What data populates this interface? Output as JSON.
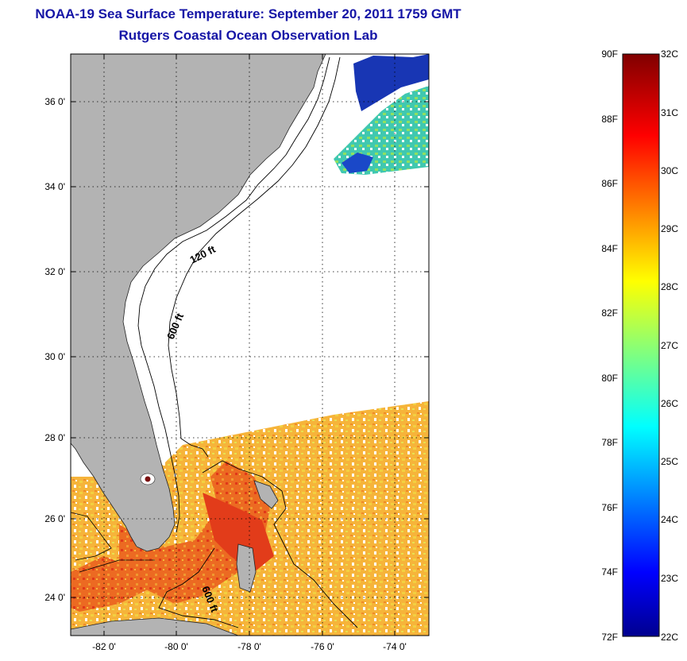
{
  "title": {
    "line1": "NOAA-19 Sea Surface Temperature:  September 20, 2011 1759 GMT",
    "line2": "Rutgers Coastal Ocean Observation Lab"
  },
  "map": {
    "lat_labels": [
      "36 0'",
      "34 0'",
      "32 0'",
      "30 0'",
      "28 0'",
      "26 0'",
      "24 0'"
    ],
    "lon_labels": [
      "-82 0'",
      "-80 0'",
      "-78 0'",
      "-76 0'",
      "-74 0'"
    ],
    "contour_labels": [
      "120 ft",
      "600 ft",
      "600 ft"
    ],
    "colors": {
      "land": "#b3b3b3",
      "grid": "#000000",
      "warm_water": "#f0a030",
      "hot_water": "#e8501a",
      "cold_water": "#1a3ab0"
    }
  },
  "colorbar": {
    "fahrenheit_labels": [
      "90F",
      "88F",
      "86F",
      "84F",
      "82F",
      "80F",
      "78F",
      "76F",
      "74F",
      "72F"
    ],
    "celsius_labels": [
      "32C",
      "31C",
      "30C",
      "29C",
      "28C",
      "27C",
      "26C",
      "25C",
      "24C",
      "23C",
      "22C"
    ],
    "range_f": [
      72,
      90
    ],
    "range_c": [
      22,
      32
    ],
    "colormap": "jet"
  }
}
